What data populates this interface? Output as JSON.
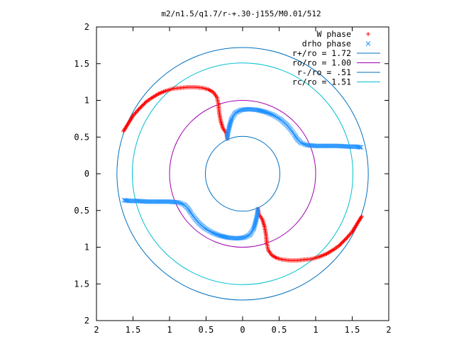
{
  "chart_data": {
    "type": "scatter",
    "title": "m2/n1.5/q1.7/r-+.30-j155/M0.01/512",
    "xlabel": "",
    "ylabel": "",
    "xlim": [
      2,
      -2
    ],
    "ylim": [
      -2,
      2
    ],
    "x_tick_labels": [
      "2",
      "1.5",
      "1",
      "0.5",
      "0",
      "0.5",
      "1",
      "1.5",
      "2"
    ],
    "y_tick_labels": [
      "2",
      "1.5",
      "1",
      "0.5",
      "0",
      "0.5",
      "1",
      "1.5",
      "2"
    ],
    "x_tick_values": [
      2,
      1.5,
      1,
      0.5,
      0,
      -0.5,
      -1,
      -1.5,
      -2
    ],
    "y_tick_values": [
      2,
      1.5,
      1,
      0.5,
      0,
      -0.5,
      -1,
      -1.5,
      -2
    ],
    "grid": false,
    "legend_position": "top-right",
    "circles": [
      {
        "label": "r+/ro = 1.72",
        "radius": 1.72,
        "color": "#0070c0"
      },
      {
        "label": "ro/ro = 1.00",
        "radius": 1.0,
        "color": "#a000b0"
      },
      {
        "label": "r-/ro = .51",
        "radius": 0.51,
        "color": "#0070c0"
      },
      {
        "label": "rc/ro = 1.51",
        "radius": 1.51,
        "color": "#00c0d0"
      }
    ],
    "series": [
      {
        "name": "W phase",
        "marker": "plus",
        "color": "#ff0000",
        "points": [
          [
            1.63,
            0.58
          ],
          [
            1.5,
            0.79
          ],
          [
            1.42,
            0.88
          ],
          [
            1.37,
            0.93
          ],
          [
            1.32,
            0.98
          ],
          [
            1.25,
            1.03
          ],
          [
            1.15,
            1.09
          ],
          [
            1.05,
            1.13
          ],
          [
            0.95,
            1.16
          ],
          [
            0.85,
            1.17
          ],
          [
            0.75,
            1.18
          ],
          [
            0.65,
            1.18
          ],
          [
            0.55,
            1.17
          ],
          [
            0.47,
            1.15
          ],
          [
            0.4,
            1.11
          ],
          [
            0.35,
            1.04
          ],
          [
            0.33,
            0.94
          ],
          [
            0.32,
            0.83
          ],
          [
            0.3,
            0.72
          ],
          [
            0.27,
            0.62
          ],
          [
            0.22,
            0.55
          ],
          [
            0.21,
            0.48
          ],
          [
            -1.63,
            -0.58
          ],
          [
            -1.5,
            -0.79
          ],
          [
            -1.42,
            -0.88
          ],
          [
            -1.37,
            -0.93
          ],
          [
            -1.32,
            -0.98
          ],
          [
            -1.25,
            -1.03
          ],
          [
            -1.15,
            -1.09
          ],
          [
            -1.05,
            -1.13
          ],
          [
            -0.95,
            -1.16
          ],
          [
            -0.85,
            -1.17
          ],
          [
            -0.75,
            -1.18
          ],
          [
            -0.65,
            -1.18
          ],
          [
            -0.55,
            -1.17
          ],
          [
            -0.47,
            -1.15
          ],
          [
            -0.4,
            -1.11
          ],
          [
            -0.35,
            -1.04
          ],
          [
            -0.33,
            -0.94
          ],
          [
            -0.32,
            -0.83
          ],
          [
            -0.3,
            -0.72
          ],
          [
            -0.27,
            -0.62
          ],
          [
            -0.22,
            -0.55
          ],
          [
            -0.21,
            -0.48
          ]
        ]
      },
      {
        "name": "drho phase",
        "marker": "cross",
        "color": "#1e90ff",
        "points": [
          [
            0.21,
            0.48
          ],
          [
            0.2,
            0.56
          ],
          [
            0.18,
            0.65
          ],
          [
            0.15,
            0.75
          ],
          [
            0.1,
            0.83
          ],
          [
            0.02,
            0.87
          ],
          [
            -0.08,
            0.88
          ],
          [
            -0.2,
            0.87
          ],
          [
            -0.32,
            0.84
          ],
          [
            -0.42,
            0.8
          ],
          [
            -0.52,
            0.74
          ],
          [
            -0.6,
            0.67
          ],
          [
            -0.66,
            0.6
          ],
          [
            -0.71,
            0.53
          ],
          [
            -0.75,
            0.47
          ],
          [
            -0.8,
            0.42
          ],
          [
            -0.88,
            0.39
          ],
          [
            -1.0,
            0.38
          ],
          [
            -1.15,
            0.38
          ],
          [
            -1.3,
            0.38
          ],
          [
            -1.45,
            0.37
          ],
          [
            -1.55,
            0.37
          ],
          [
            -1.62,
            0.36
          ],
          [
            -0.21,
            -0.48
          ],
          [
            -0.2,
            -0.56
          ],
          [
            -0.18,
            -0.65
          ],
          [
            -0.15,
            -0.75
          ],
          [
            -0.1,
            -0.83
          ],
          [
            -0.02,
            -0.87
          ],
          [
            0.08,
            -0.88
          ],
          [
            0.2,
            -0.87
          ],
          [
            0.32,
            -0.84
          ],
          [
            0.42,
            -0.8
          ],
          [
            0.52,
            -0.74
          ],
          [
            0.6,
            -0.67
          ],
          [
            0.66,
            -0.6
          ],
          [
            0.71,
            -0.53
          ],
          [
            0.75,
            -0.47
          ],
          [
            0.8,
            -0.42
          ],
          [
            0.88,
            -0.39
          ],
          [
            1.0,
            -0.38
          ],
          [
            1.15,
            -0.38
          ],
          [
            1.3,
            -0.38
          ],
          [
            1.45,
            -0.37
          ],
          [
            1.55,
            -0.37
          ],
          [
            1.62,
            -0.36
          ]
        ]
      }
    ]
  }
}
